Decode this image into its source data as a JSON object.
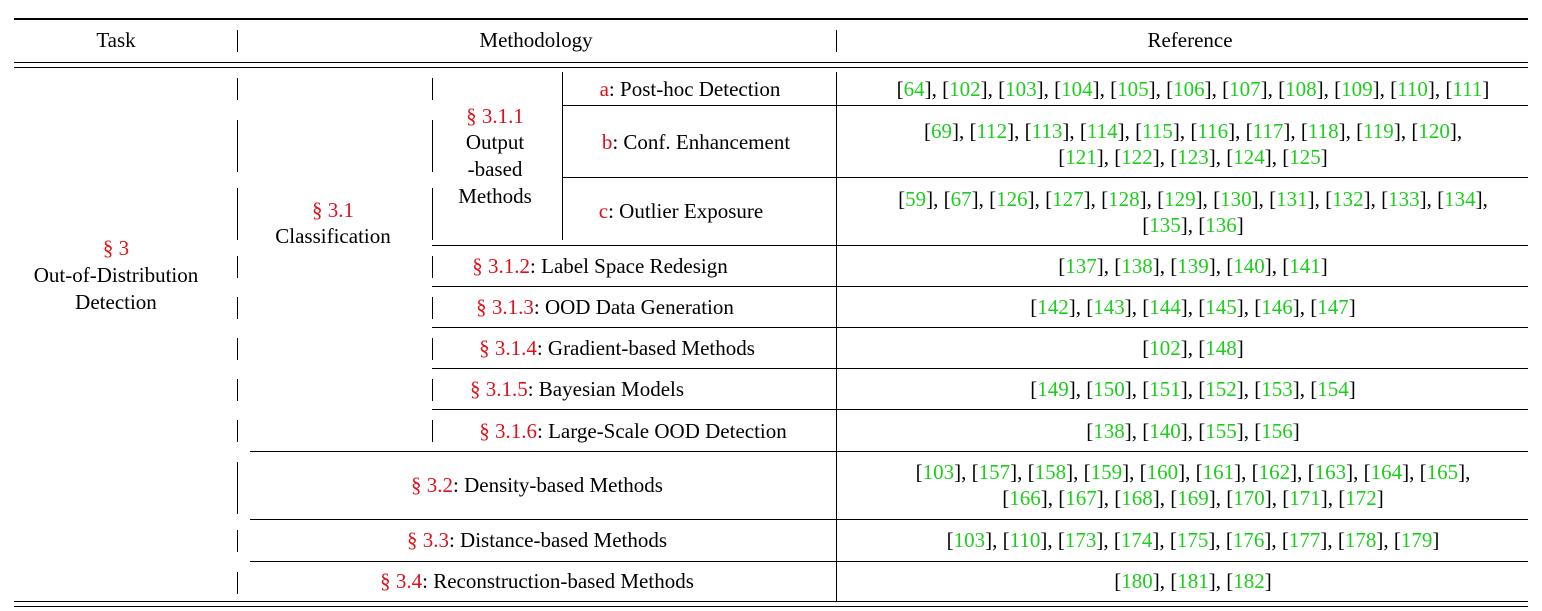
{
  "headers": {
    "task": "Task",
    "methodology": "Methodology",
    "reference": "Reference"
  },
  "task": {
    "section": "§ 3",
    "line1": "Out-of-Distribution",
    "line2": "Detection"
  },
  "classification": {
    "section": "§ 3.1",
    "label": "Classification"
  },
  "output_based": {
    "section": "§ 3.1.1",
    "line1": "Output",
    "line2": "-based",
    "line3": "Methods"
  },
  "subrows": [
    {
      "tag": "a",
      "label": ": Post-hoc Detection",
      "refs": [
        [
          "64",
          "102",
          "103",
          "104",
          "105",
          "106",
          "107",
          "108",
          "109",
          "110",
          "111"
        ]
      ]
    },
    {
      "tag": "b",
      "label": ": Conf. Enhancement",
      "refs": [
        [
          "69",
          "112",
          "113",
          "114",
          "115",
          "116",
          "117",
          "118",
          "119",
          "120"
        ],
        [
          "121",
          "122",
          "123",
          "124",
          "125"
        ]
      ]
    },
    {
      "tag": "c",
      "label": ": Outlier Exposure",
      "refs": [
        [
          "59",
          "67",
          "126",
          "127",
          "128",
          "129",
          "130",
          "131",
          "132",
          "133",
          "134"
        ],
        [
          "135",
          "136"
        ]
      ]
    }
  ],
  "rows": [
    {
      "section": "§ 3.1.2",
      "label": ": Label Space Redesign",
      "refs": [
        [
          "137",
          "138",
          "139",
          "140",
          "141"
        ]
      ]
    },
    {
      "section": "§ 3.1.3",
      "label": ": OOD Data Generation",
      "refs": [
        [
          "142",
          "143",
          "144",
          "145",
          "146",
          "147"
        ]
      ]
    },
    {
      "section": "§ 3.1.4",
      "label": ": Gradient-based Methods",
      "refs": [
        [
          "102",
          "148"
        ]
      ]
    },
    {
      "section": "§ 3.1.5",
      "label": ": Bayesian Models",
      "refs": [
        [
          "149",
          "150",
          "151",
          "152",
          "153",
          "154"
        ]
      ]
    },
    {
      "section": "§ 3.1.6",
      "label": ": Large-Scale OOD Detection",
      "refs": [
        [
          "138",
          "140",
          "155",
          "156"
        ]
      ]
    }
  ],
  "methods": [
    {
      "section": "§ 3.2",
      "label": ": Density-based Methods",
      "refs": [
        [
          "103",
          "157",
          "158",
          "159",
          "160",
          "161",
          "162",
          "163",
          "164",
          "165"
        ],
        [
          "166",
          "167",
          "168",
          "169",
          "170",
          "171",
          "172"
        ]
      ]
    },
    {
      "section": "§ 3.3",
      "label": ": Distance-based Methods",
      "refs": [
        [
          "103",
          "110",
          "173",
          "174",
          "175",
          "176",
          "177",
          "178",
          "179"
        ]
      ]
    },
    {
      "section": "§ 3.4",
      "label": ": Reconstruction-based Methods",
      "refs": [
        [
          "180",
          "181",
          "182"
        ]
      ]
    }
  ],
  "colors": {
    "section_red": "#e0101a",
    "ref_green": "#1ccf1c"
  }
}
